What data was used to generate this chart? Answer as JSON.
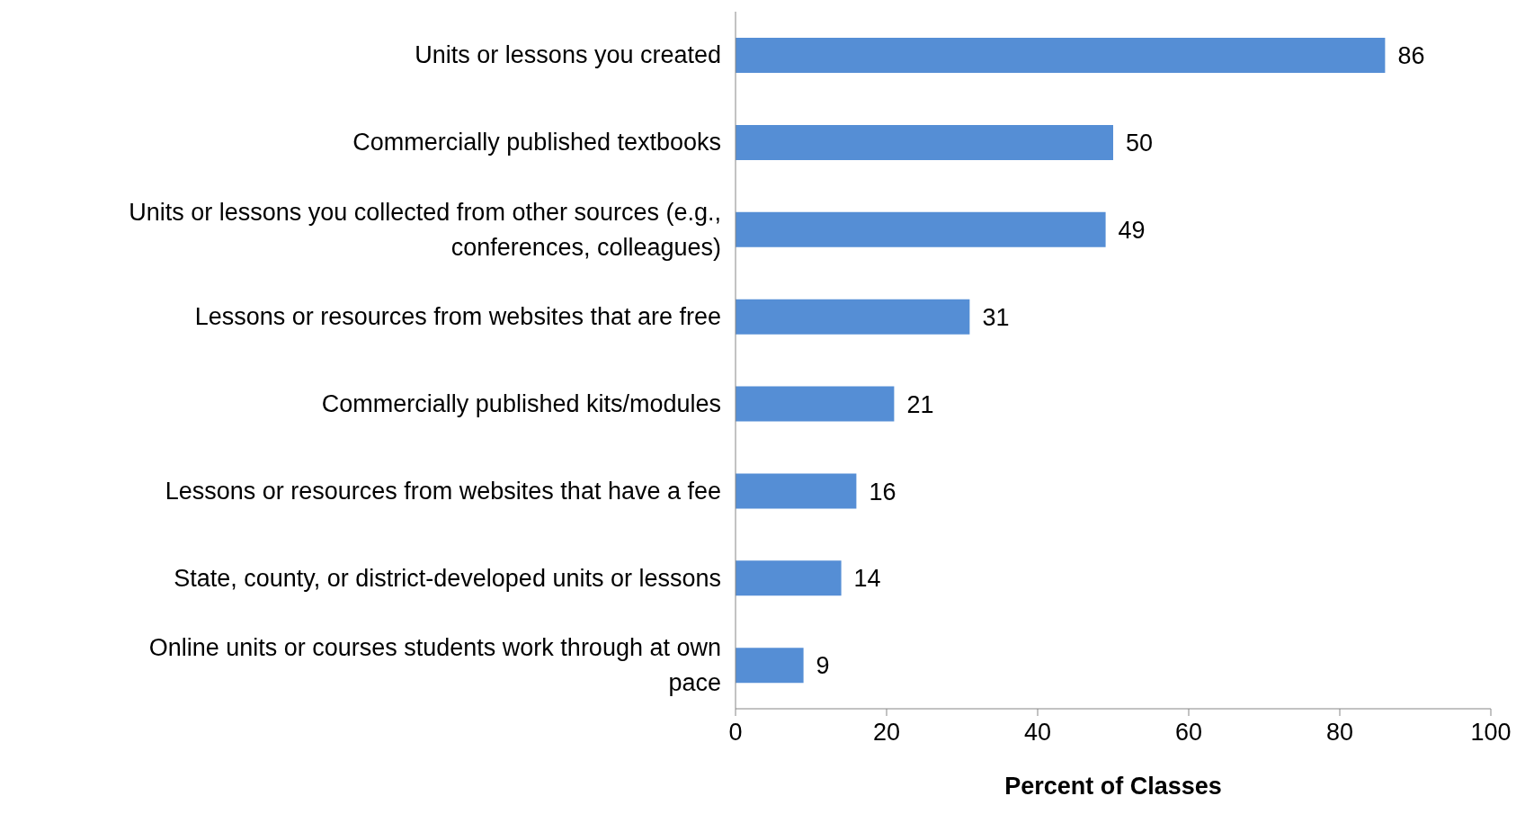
{
  "chart_data": {
    "type": "bar",
    "orientation": "horizontal",
    "xlabel": "Percent of Classes",
    "categories": [
      "Units or lessons you created",
      "Commercially published textbooks",
      "Units or lessons you collected from other sources (e.g., conferences, colleagues)",
      "Lessons or resources from websites that are free",
      "Commercially published kits/modules",
      "Lessons or resources from websites that have a fee",
      "State, county, or district-developed units or lessons",
      "Online units or courses students work through at own pace"
    ],
    "values": [
      86,
      50,
      49,
      31,
      21,
      16,
      14,
      9
    ],
    "color": "#558ed5",
    "xlim": [
      0,
      100
    ],
    "xticks": [
      0,
      20,
      40,
      60,
      80,
      100
    ],
    "data_labels": true,
    "grid": false
  }
}
